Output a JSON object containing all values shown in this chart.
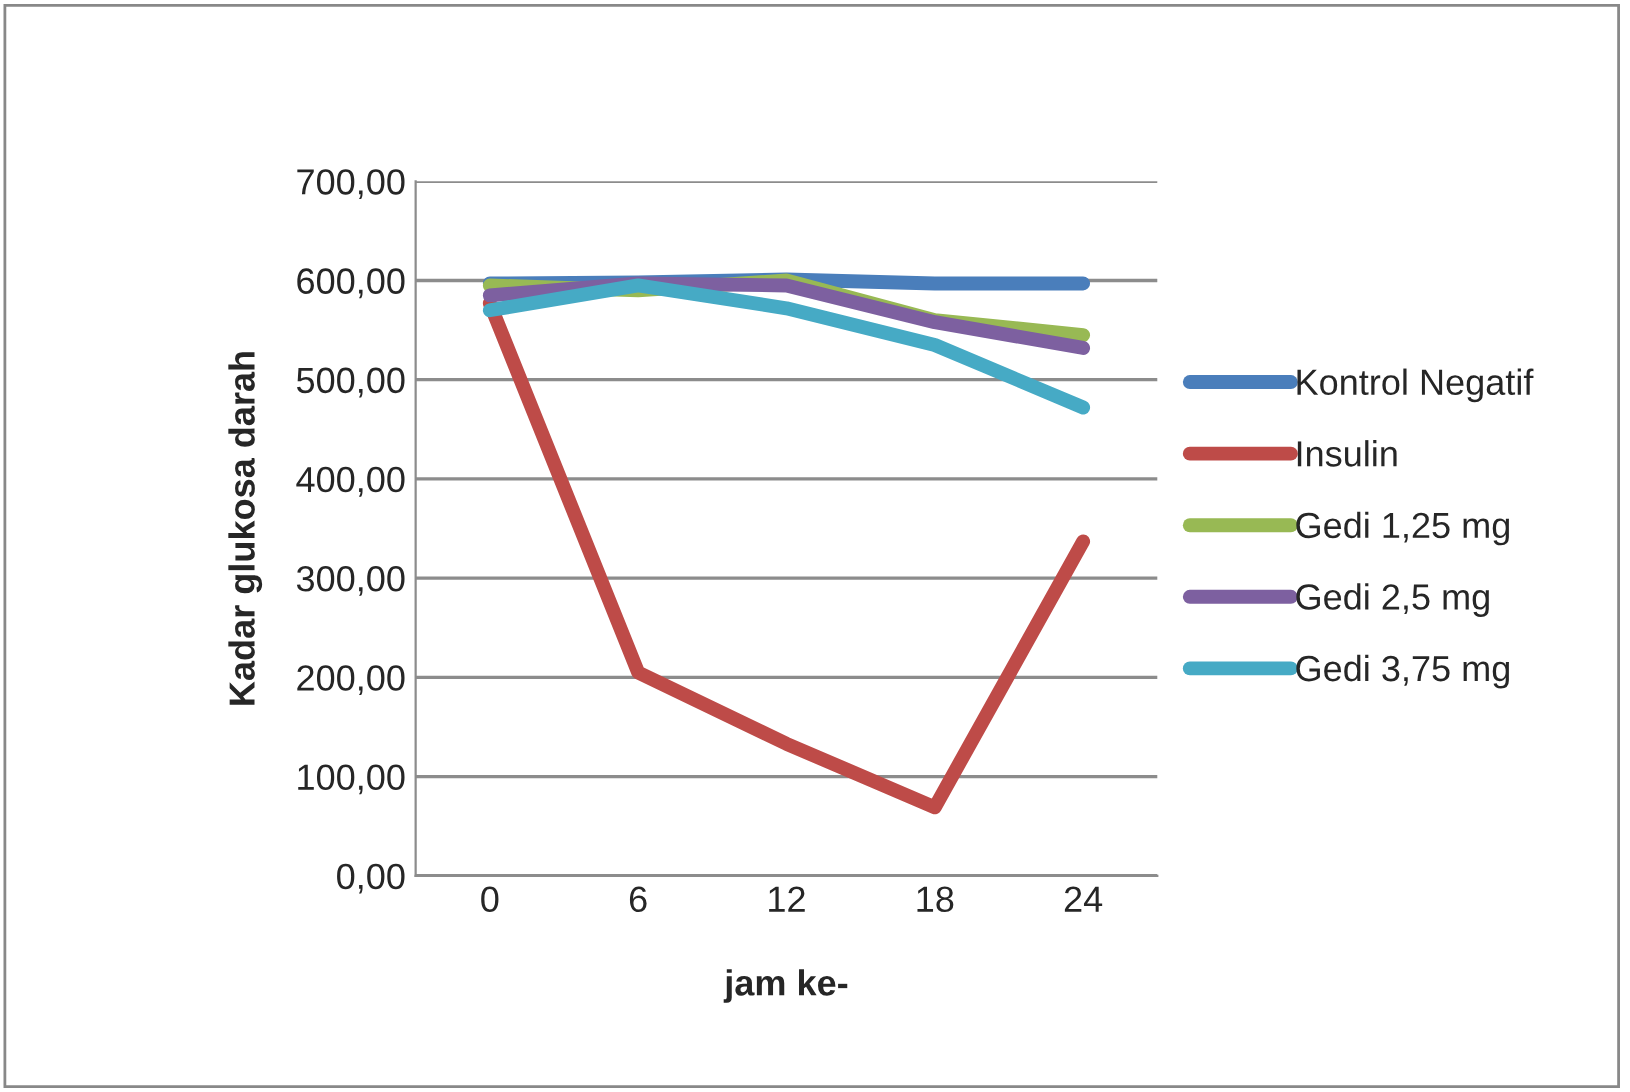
{
  "chart_data": {
    "type": "line",
    "xlabel": "jam ke-",
    "ylabel": "Kadar glukosa darah",
    "categories": [
      "0",
      "6",
      "12",
      "18",
      "24"
    ],
    "series": [
      {
        "name": "Kontrol Negatif",
        "color": "#4a7ebb",
        "values": [
          597,
          598,
          601,
          597,
          597
        ]
      },
      {
        "name": "Insulin",
        "color": "#be4b48",
        "values": [
          577,
          205,
          133,
          69,
          337
        ]
      },
      {
        "name": "Gedi 1,25 mg",
        "color": "#98b954",
        "values": [
          595,
          590,
          600,
          560,
          545
        ]
      },
      {
        "name": "Gedi 2,5 mg",
        "color": "#7d60a0",
        "values": [
          585,
          597,
          595,
          558,
          532
        ]
      },
      {
        "name": "Gedi 3,75 mg",
        "color": "#46aac5",
        "values": [
          570,
          595,
          572,
          535,
          472
        ]
      }
    ],
    "ylim": [
      0,
      700
    ],
    "yticks": [
      {
        "value": 0,
        "label": "0,00"
      },
      {
        "value": 100,
        "label": "100,00"
      },
      {
        "value": 200,
        "label": "200,00"
      },
      {
        "value": 300,
        "label": "300,00"
      },
      {
        "value": 400,
        "label": "400,00"
      },
      {
        "value": 500,
        "label": "500,00"
      },
      {
        "value": 600,
        "label": "600,00"
      },
      {
        "value": 700,
        "label": "700,00"
      }
    ],
    "grid": "y",
    "legend": "right",
    "marker": "none",
    "line_style": "solid"
  }
}
